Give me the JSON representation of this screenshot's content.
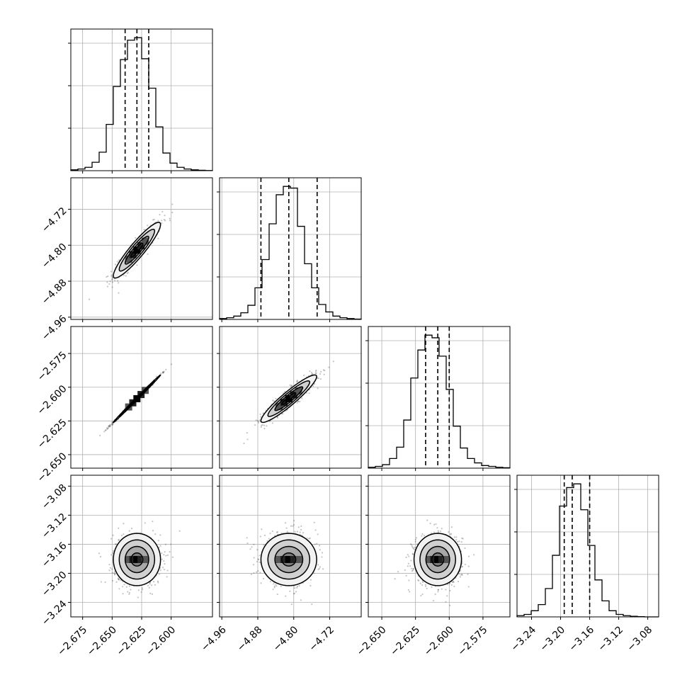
{
  "chart_data": {
    "type": "corner",
    "grid": true,
    "dashed_lines": "16th / 50th / 84th percentiles",
    "parameters": [
      {
        "range": [
          -2.685,
          -2.565
        ],
        "ticks": [
          -2.675,
          -2.65,
          -2.625,
          -2.6
        ],
        "tick_labels": [
          "−2.675",
          "−2.650",
          "−2.625",
          "−2.600"
        ],
        "quantiles": [
          -2.639,
          -2.629,
          -2.619
        ],
        "hist_counts": [
          1,
          2,
          4,
          10,
          22,
          55,
          100,
          132,
          155,
          158,
          133,
          98,
          52,
          21,
          9,
          4,
          2,
          1,
          0.5,
          0.2
        ]
      },
      {
        "range": [
          -4.965,
          -4.65
        ],
        "ticks": [
          -4.96,
          -4.88,
          -4.8,
          -4.72
        ],
        "tick_labels": [
          "−4.96",
          "−4.88",
          "−4.80",
          "−4.72"
        ],
        "quantiles": [
          -4.873,
          -4.811,
          -4.748
        ],
        "hist_counts": [
          1,
          2,
          4,
          8,
          17,
          38,
          72,
          115,
          150,
          160,
          158,
          112,
          67,
          38,
          18,
          9,
          4,
          2,
          1,
          0.4
        ]
      },
      {
        "range": [
          -2.66,
          -2.555
        ],
        "ticks": [
          -2.65,
          -2.625,
          -2.6,
          -2.575
        ],
        "tick_labels": [
          "−2.650",
          "−2.625",
          "−2.600",
          "−2.575"
        ],
        "quantiles": [
          -2.6175,
          -2.6085,
          -2.6
        ],
        "hist_counts": [
          1,
          2,
          4,
          11,
          24,
          55,
          103,
          135,
          152,
          149,
          128,
          90,
          48,
          23,
          11,
          6,
          3,
          2,
          1,
          0.5
        ]
      },
      {
        "range": [
          -3.26,
          -3.065
        ],
        "ticks": [
          -3.24,
          -3.2,
          -3.16,
          -3.12,
          -3.08
        ],
        "tick_labels": [
          "−3.24",
          "−3.20",
          "−3.16",
          "−3.12",
          "−3.08"
        ],
        "quantiles": [
          -3.195,
          -3.184,
          -3.16
        ],
        "hist_counts": [
          1,
          2,
          5,
          10,
          23,
          50,
          90,
          105,
          108,
          87,
          58,
          30,
          13,
          5,
          2,
          1,
          0.5,
          0.2,
          0,
          0
        ]
      }
    ],
    "pairs": [
      {
        "row": 1,
        "col": 0,
        "mean": [
          -2.629,
          -4.811
        ],
        "sd": [
          0.01,
          0.031
        ],
        "rho": 0.92,
        "cloud_count": 600
      },
      {
        "row": 2,
        "col": 0,
        "mean": [
          -2.629,
          -2.6085
        ],
        "sd": [
          0.01,
          0.0088
        ],
        "rho": 0.998,
        "cloud_count": 600
      },
      {
        "row": 2,
        "col": 1,
        "mean": [
          -4.811,
          -2.6085
        ],
        "sd": [
          0.031,
          0.0088
        ],
        "rho": 0.93,
        "cloud_count": 600
      },
      {
        "row": 3,
        "col": 0,
        "mean": [
          -2.629,
          -3.181
        ],
        "sd": [
          0.01,
          0.018
        ],
        "rho": 0.0,
        "cloud_count": 700
      },
      {
        "row": 3,
        "col": 1,
        "mean": [
          -4.811,
          -3.181
        ],
        "sd": [
          0.031,
          0.018
        ],
        "rho": 0.0,
        "cloud_count": 700
      },
      {
        "row": 3,
        "col": 2,
        "mean": [
          -2.6085,
          -3.181
        ],
        "sd": [
          0.0088,
          0.018
        ],
        "rho": 0.0,
        "cloud_count": 700
      }
    ],
    "contour_levels_sigma": [
      0.5,
      1.0,
      1.5,
      2.0
    ]
  }
}
